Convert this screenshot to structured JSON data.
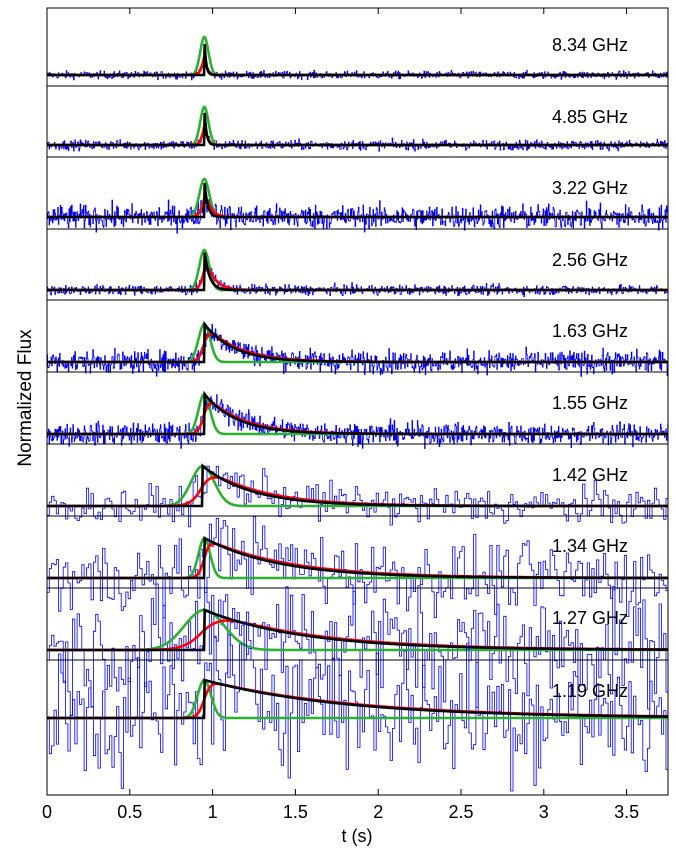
{
  "chart_data": {
    "type": "line",
    "title": "",
    "xlabel": "t (s)",
    "ylabel": "Normalized Flux",
    "xlim": [
      0,
      3.75
    ],
    "grid": false,
    "x_ticks": [
      0,
      0.5,
      1,
      1.5,
      2,
      2.5,
      3,
      3.5
    ],
    "x_tick_labels": [
      "0",
      "0.5",
      "1",
      "1.5",
      "2",
      "2.5",
      "3",
      "3.5"
    ],
    "panel_stacking": "stacked, offset vertically, highest frequency on top",
    "series_colors": {
      "data": "#0000ee",
      "model_red": "#ff0000",
      "model_black": "#000000",
      "model_green": "#2db02d"
    },
    "panels": [
      {
        "label": "8.34 GHz",
        "peak_time": 0.95,
        "peak_height": 0.8,
        "scatter_tau": 0.01,
        "red_tau": 0.012,
        "green_sigma": 0.025,
        "noise": 0.04,
        "bin_s": 0.004
      },
      {
        "label": "4.85 GHz",
        "peak_time": 0.95,
        "peak_height": 0.78,
        "scatter_tau": 0.012,
        "red_tau": 0.014,
        "green_sigma": 0.025,
        "noise": 0.05,
        "bin_s": 0.004
      },
      {
        "label": "3.22 GHz",
        "peak_time": 0.95,
        "peak_height": 0.75,
        "scatter_tau": 0.018,
        "red_tau": 0.03,
        "green_sigma": 0.03,
        "noise": 0.12,
        "bin_s": 0.004
      },
      {
        "label": "2.56 GHz",
        "peak_time": 0.95,
        "peak_height": 0.8,
        "scatter_tau": 0.03,
        "red_tau": 0.05,
        "green_sigma": 0.03,
        "noise": 0.05,
        "bin_s": 0.004
      },
      {
        "label": "1.63 GHz",
        "peak_time": 0.95,
        "peak_height": 0.68,
        "scatter_tau": 0.18,
        "red_tau": 0.2,
        "green_sigma": 0.035,
        "noise": 0.1,
        "bin_s": 0.004
      },
      {
        "label": "1.55 GHz",
        "peak_time": 0.95,
        "peak_height": 0.72,
        "scatter_tau": 0.2,
        "red_tau": 0.22,
        "green_sigma": 0.035,
        "noise": 0.1,
        "bin_s": 0.004
      },
      {
        "label": "1.42 GHz",
        "peak_time": 0.94,
        "peak_height": 0.75,
        "scatter_tau": 0.3,
        "red_tau": 0.34,
        "green_sigma": 0.07,
        "noise": 0.18,
        "bin_s": 0.014
      },
      {
        "label": "1.34 GHz",
        "peak_time": 0.95,
        "peak_height": 0.78,
        "scatter_tau": 0.45,
        "red_tau": 0.5,
        "green_sigma": 0.035,
        "noise": 0.35,
        "bin_s": 0.014
      },
      {
        "label": "1.27 GHz",
        "peak_time": 0.95,
        "peak_height": 0.68,
        "scatter_tau": 0.6,
        "red_tau": 0.65,
        "green_sigma": 0.12,
        "noise": 0.45,
        "bin_s": 0.014
      },
      {
        "label": "1.19 GHz",
        "peak_time": 0.95,
        "peak_height": 0.8,
        "scatter_tau": 0.85,
        "red_tau": 0.9,
        "green_sigma": 0.04,
        "noise": 0.7,
        "bin_s": 0.014
      }
    ]
  }
}
